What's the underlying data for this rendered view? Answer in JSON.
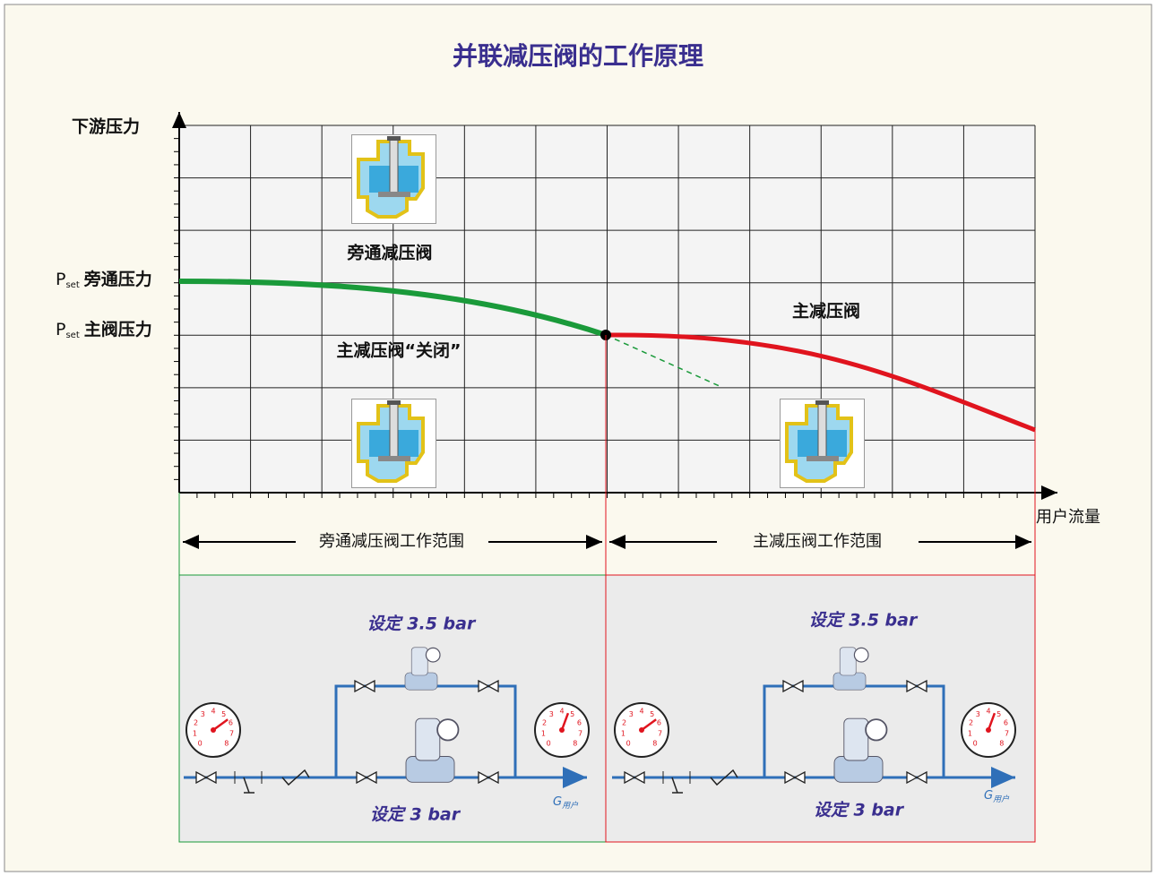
{
  "title": "并联减压阀的工作原理",
  "y_axis_label": "下游压力",
  "x_axis_label": "用户流量",
  "bypass_pressure": {
    "symbol": "P",
    "subscript": "set",
    "label": "旁通压力"
  },
  "main_pressure": {
    "symbol": "P",
    "subscript": "set",
    "label": "主阀压力"
  },
  "bypass_valve_label": "旁通减压阀",
  "main_valve_label": "主减压阀",
  "closed_label": "主减压阀“关闭”",
  "range_left": "旁通减压阀工作范围",
  "range_right": "主减压阀工作范围",
  "panel_left": {
    "setting_top": "设定 3.5 bar",
    "setting_bottom": "设定 3 bar",
    "flow": {
      "symbol": "G",
      "subscript": "用户"
    }
  },
  "panel_right": {
    "setting_top": "设定 3.5 bar",
    "setting_bottom": "设定 3 bar",
    "flow": {
      "symbol": "G",
      "subscript": "用户"
    }
  },
  "gauge_scale": [
    "0",
    "1",
    "2",
    "3",
    "4",
    "5",
    "6",
    "7",
    "8"
  ]
}
